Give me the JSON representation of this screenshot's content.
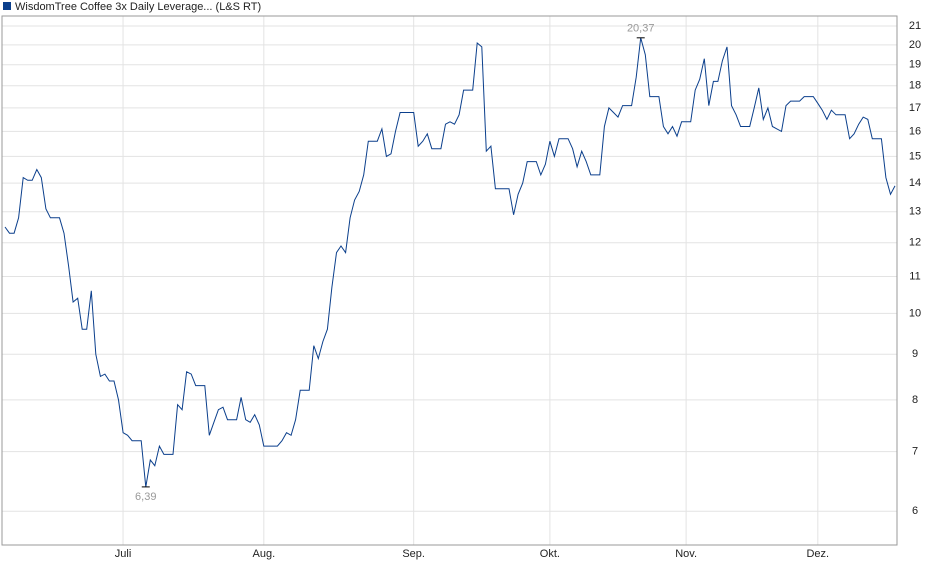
{
  "chart_data": {
    "type": "line",
    "series": [
      {
        "name": "WisdomTree Coffee 3x Daily Leverage... (L&S RT)",
        "color": "#0b3f8c",
        "values": [
          12.5,
          12.3,
          12.3,
          12.8,
          14.2,
          14.1,
          14.1,
          14.5,
          14.2,
          13.1,
          12.8,
          12.8,
          12.8,
          12.3,
          11.3,
          10.3,
          10.4,
          9.6,
          9.6,
          10.6,
          9.0,
          8.5,
          8.55,
          8.4,
          8.4,
          8.0,
          7.35,
          7.3,
          7.2,
          7.2,
          7.2,
          6.39,
          6.85,
          6.75,
          7.1,
          6.95,
          6.95,
          6.95,
          7.9,
          7.8,
          8.6,
          8.55,
          8.3,
          8.3,
          8.3,
          7.3,
          7.55,
          7.8,
          7.85,
          7.6,
          7.6,
          7.6,
          8.05,
          7.6,
          7.55,
          7.7,
          7.5,
          7.1,
          7.1,
          7.1,
          7.1,
          7.2,
          7.35,
          7.3,
          7.6,
          8.2,
          8.2,
          8.2,
          9.2,
          8.9,
          9.3,
          9.6,
          10.7,
          11.7,
          11.9,
          11.7,
          12.8,
          13.4,
          13.7,
          14.3,
          15.6,
          15.6,
          15.6,
          16.1,
          15.0,
          15.1,
          16.0,
          16.8,
          16.8,
          16.8,
          16.8,
          15.4,
          15.6,
          15.9,
          15.3,
          15.3,
          15.3,
          16.3,
          16.4,
          16.3,
          16.7,
          17.8,
          17.8,
          17.8,
          20.1,
          19.9,
          15.2,
          15.4,
          13.8,
          13.8,
          13.8,
          13.8,
          12.9,
          13.6,
          14.0,
          14.8,
          14.8,
          14.8,
          14.3,
          14.7,
          15.6,
          15.0,
          15.7,
          15.7,
          15.7,
          15.3,
          14.6,
          15.2,
          14.8,
          14.3,
          14.3,
          14.3,
          16.2,
          17.0,
          16.8,
          16.6,
          17.1,
          17.1,
          17.1,
          18.4,
          20.37,
          19.5,
          17.5,
          17.5,
          17.5,
          16.2,
          15.9,
          16.2,
          15.8,
          16.4,
          16.4,
          16.4,
          17.8,
          18.3,
          19.3,
          17.1,
          18.2,
          18.2,
          19.2,
          19.9,
          17.1,
          16.7,
          16.2,
          16.2,
          16.2,
          17.0,
          17.9,
          16.5,
          17.0,
          16.2,
          16.1,
          16.0,
          17.1,
          17.3,
          17.3,
          17.3,
          17.5,
          17.5,
          17.5,
          17.2,
          16.9,
          16.5,
          16.9,
          16.7,
          16.7,
          16.7,
          15.7,
          15.9,
          16.3,
          16.6,
          16.5,
          15.7,
          15.7,
          15.7,
          14.2,
          13.6,
          13.9
        ]
      }
    ],
    "categories": [
      null,
      null,
      null,
      null,
      null,
      null,
      null,
      null,
      null,
      null,
      null,
      null,
      null,
      null,
      null,
      null,
      null,
      null,
      null,
      null,
      null,
      null,
      null,
      null,
      null,
      null,
      "Juli",
      null,
      null,
      null,
      null,
      null,
      null,
      null,
      null,
      null,
      null,
      null,
      null,
      null,
      null,
      null,
      null,
      null,
      null,
      null,
      null,
      null,
      null,
      null,
      null,
      null,
      null,
      null,
      null,
      null,
      null,
      "Aug.",
      null,
      null,
      null,
      null,
      null,
      null,
      null,
      null,
      null,
      null,
      null,
      null,
      null,
      null,
      null,
      null,
      null,
      null,
      null,
      null,
      null,
      null,
      null,
      null,
      null,
      null,
      null,
      null,
      null,
      null,
      null,
      null,
      "Sep.",
      null,
      null,
      null,
      null,
      null,
      null,
      null,
      null,
      null,
      null,
      null,
      null,
      null,
      null,
      null,
      null,
      null,
      null,
      null,
      null,
      null,
      null,
      null,
      null,
      null,
      null,
      null,
      null,
      null,
      "Okt.",
      null,
      null,
      null,
      null,
      null,
      null,
      null,
      null,
      null,
      null,
      null,
      null,
      null,
      null,
      null,
      null,
      null,
      null,
      null,
      null,
      null,
      null,
      null,
      null,
      null,
      null,
      null,
      null,
      null,
      "Nov.",
      null,
      null,
      null,
      null,
      null,
      null,
      null,
      null,
      null,
      null,
      null,
      null,
      null,
      null,
      null,
      null,
      null,
      null,
      null,
      null,
      null,
      null,
      null,
      null,
      null,
      null,
      null,
      null,
      "Dez.",
      null,
      null,
      null,
      null,
      null,
      null,
      null,
      null,
      null,
      null,
      null,
      null,
      null,
      null,
      null,
      null,
      null
    ],
    "annotations": [
      {
        "text": "6,39",
        "value": 6.39
      },
      {
        "text": "20,37",
        "value": 20.37
      }
    ],
    "ylim": [
      5.5,
      21.55
    ],
    "yticks": [
      6,
      7,
      8,
      9,
      10,
      11,
      12,
      13,
      14,
      15,
      16,
      17,
      18,
      19,
      20,
      21
    ],
    "log_y": true,
    "grid": true,
    "legend": "top-left"
  }
}
